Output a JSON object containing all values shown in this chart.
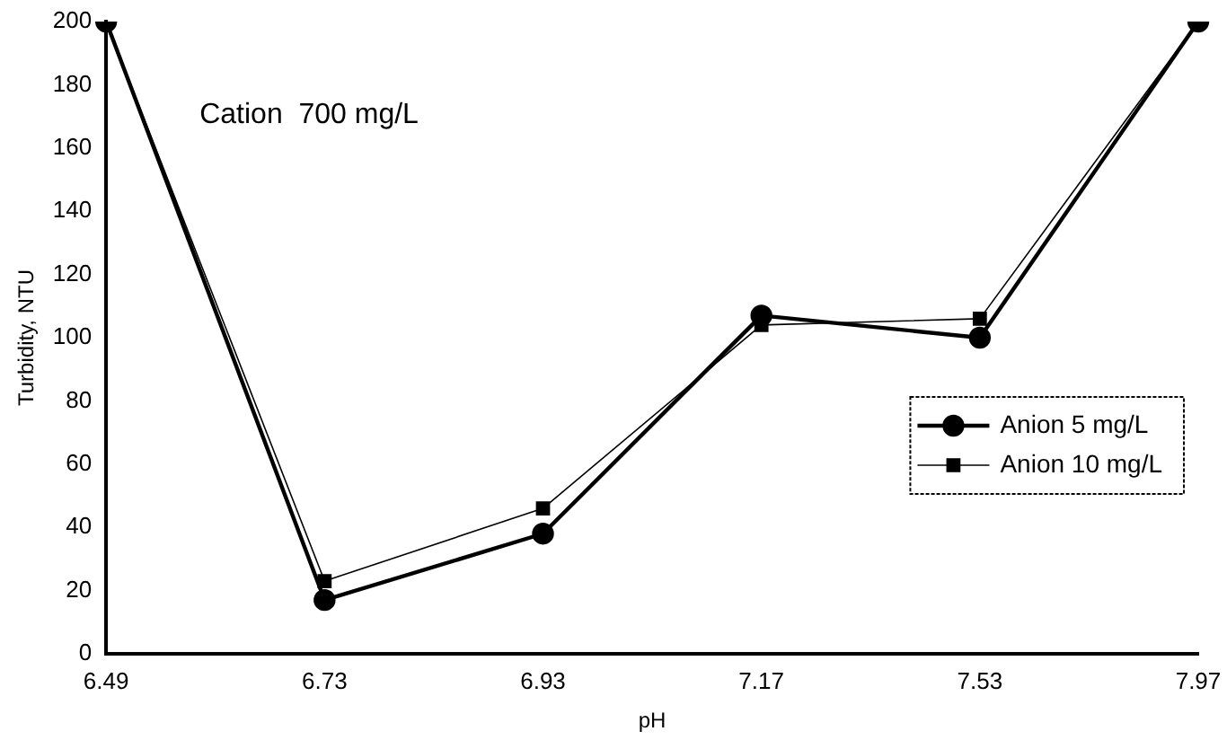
{
  "chart_data": {
    "type": "line",
    "xlabel": "pH",
    "ylabel": "Turbidity, NTU",
    "annotations": [
      "Cation  700 mg/L"
    ],
    "categories": [
      "6.49",
      "6.73",
      "6.93",
      "7.17",
      "7.53",
      "7.97"
    ],
    "series": [
      {
        "name": "Anion 5 mg/L",
        "color": "#000000",
        "marker": "circle",
        "values": [
          200,
          17,
          38,
          107,
          100,
          200
        ]
      },
      {
        "name": "Anion 10 mg/L",
        "color": "#000000",
        "marker": "square",
        "values": [
          200,
          23,
          46,
          104,
          106,
          200
        ]
      }
    ],
    "ylim": [
      0,
      200
    ],
    "yticks": [
      0,
      20,
      40,
      60,
      80,
      100,
      120,
      140,
      160,
      180,
      200
    ],
    "grid": false,
    "legend": "right",
    "line_style": "solid"
  }
}
